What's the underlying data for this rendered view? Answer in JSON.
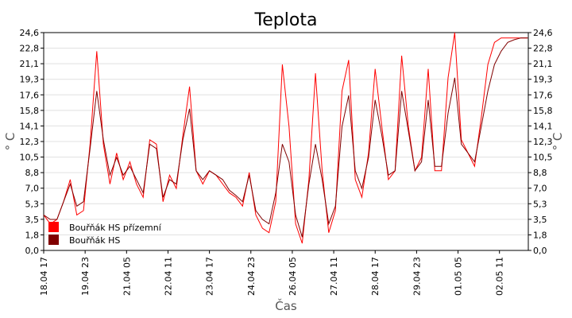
{
  "chart_data": {
    "type": "line",
    "title": "Teplota",
    "xlabel": "Čas",
    "ylabel": "° C",
    "ylabel_right": "° C",
    "ylim": [
      0,
      24.6
    ],
    "yticks": [
      "0,0",
      "1,8",
      "3,5",
      "5,3",
      "7,0",
      "8,8",
      "10,5",
      "12,3",
      "14,1",
      "15,8",
      "17,6",
      "19,3",
      "21,1",
      "22,8",
      "24,6"
    ],
    "xlim": [
      0,
      14.62
    ],
    "x_unit": "days since 18.04 17:00",
    "xticks": [
      {
        "x": 0.0,
        "label": "18.04 17"
      },
      {
        "x": 1.25,
        "label": "19.04 23"
      },
      {
        "x": 2.5,
        "label": "21.04 05"
      },
      {
        "x": 3.75,
        "label": "22.04 11"
      },
      {
        "x": 5.0,
        "label": "23.04 17"
      },
      {
        "x": 6.25,
        "label": "24.04 23"
      },
      {
        "x": 7.5,
        "label": "26.04 05"
      },
      {
        "x": 8.75,
        "label": "27.04 11"
      },
      {
        "x": 10.0,
        "label": "28.04 17"
      },
      {
        "x": 11.25,
        "label": "29.04 23"
      },
      {
        "x": 12.5,
        "label": "01.05 05"
      },
      {
        "x": 13.75,
        "label": "02.05 11"
      }
    ],
    "grid": true,
    "legend_position": "bottom-left",
    "series": [
      {
        "name": "Bouřňák HS přízemní",
        "color": "#ff0000",
        "x": [
          0,
          0.2,
          0.4,
          0.6,
          0.8,
          1.0,
          1.2,
          1.4,
          1.6,
          1.8,
          2.0,
          2.2,
          2.4,
          2.6,
          2.8,
          3.0,
          3.2,
          3.4,
          3.6,
          3.8,
          4.0,
          4.2,
          4.4,
          4.6,
          4.8,
          5.0,
          5.2,
          5.4,
          5.6,
          5.8,
          6.0,
          6.2,
          6.4,
          6.6,
          6.8,
          7.0,
          7.2,
          7.4,
          7.6,
          7.8,
          8.0,
          8.2,
          8.4,
          8.6,
          8.8,
          9.0,
          9.2,
          9.4,
          9.6,
          9.8,
          10.0,
          10.2,
          10.4,
          10.6,
          10.8,
          11.0,
          11.2,
          11.4,
          11.6,
          11.8,
          12.0,
          12.2,
          12.4,
          12.6,
          12.8,
          13.0,
          13.2,
          13.4,
          13.6,
          13.8,
          14.0,
          14.2,
          14.4,
          14.6
        ],
        "values": [
          4.0,
          3.0,
          3.5,
          5.5,
          8.0,
          4.0,
          4.5,
          12.0,
          22.5,
          12.0,
          7.5,
          11.0,
          8.0,
          10.0,
          7.5,
          6.0,
          12.5,
          12.0,
          5.5,
          8.5,
          7.0,
          13.0,
          18.5,
          9.0,
          7.5,
          9.0,
          8.5,
          7.5,
          6.5,
          6.0,
          5.0,
          8.8,
          4.0,
          2.5,
          2.0,
          5.5,
          21.0,
          14.0,
          3.0,
          0.8,
          8.0,
          20.0,
          9.0,
          2.0,
          4.5,
          18.0,
          21.5,
          8.0,
          6.0,
          11.0,
          20.5,
          14.0,
          8.0,
          9.0,
          22.0,
          14.0,
          9.0,
          10.5,
          20.5,
          9.0,
          9.0,
          19.5,
          24.6,
          12.5,
          11.0,
          9.5,
          15.0,
          21.0,
          23.5,
          24.0,
          24.0,
          24.0,
          24.0,
          24.0
        ]
      },
      {
        "name": "Bouřňák HS",
        "color": "#800000",
        "x": [
          0,
          0.2,
          0.4,
          0.6,
          0.8,
          1.0,
          1.2,
          1.4,
          1.6,
          1.8,
          2.0,
          2.2,
          2.4,
          2.6,
          2.8,
          3.0,
          3.2,
          3.4,
          3.6,
          3.8,
          4.0,
          4.2,
          4.4,
          4.6,
          4.8,
          5.0,
          5.2,
          5.4,
          5.6,
          5.8,
          6.0,
          6.2,
          6.4,
          6.6,
          6.8,
          7.0,
          7.2,
          7.4,
          7.6,
          7.8,
          8.0,
          8.2,
          8.4,
          8.6,
          8.8,
          9.0,
          9.2,
          9.4,
          9.6,
          9.8,
          10.0,
          10.2,
          10.4,
          10.6,
          10.8,
          11.0,
          11.2,
          11.4,
          11.6,
          11.8,
          12.0,
          12.2,
          12.4,
          12.6,
          12.8,
          13.0,
          13.2,
          13.4,
          13.6,
          13.8,
          14.0,
          14.2,
          14.4,
          14.6
        ],
        "values": [
          4.0,
          3.5,
          3.5,
          5.5,
          7.5,
          5.0,
          5.5,
          11.5,
          18.0,
          12.5,
          8.5,
          10.5,
          8.5,
          9.5,
          8.0,
          6.5,
          12.0,
          11.5,
          6.0,
          8.0,
          7.5,
          12.5,
          16.0,
          9.0,
          8.0,
          9.0,
          8.5,
          8.0,
          6.8,
          6.2,
          5.5,
          8.5,
          4.5,
          3.5,
          3.0,
          6.5,
          12.0,
          10.0,
          4.0,
          1.5,
          7.5,
          12.0,
          8.0,
          3.0,
          5.0,
          14.0,
          17.5,
          9.0,
          7.0,
          10.5,
          17.0,
          13.0,
          8.5,
          9.0,
          18.0,
          13.5,
          9.0,
          10.0,
          17.0,
          9.5,
          9.5,
          15.5,
          19.5,
          12.0,
          11.0,
          10.0,
          14.0,
          18.0,
          21.0,
          22.5,
          23.5,
          23.8,
          24.0,
          24.0
        ]
      }
    ]
  }
}
